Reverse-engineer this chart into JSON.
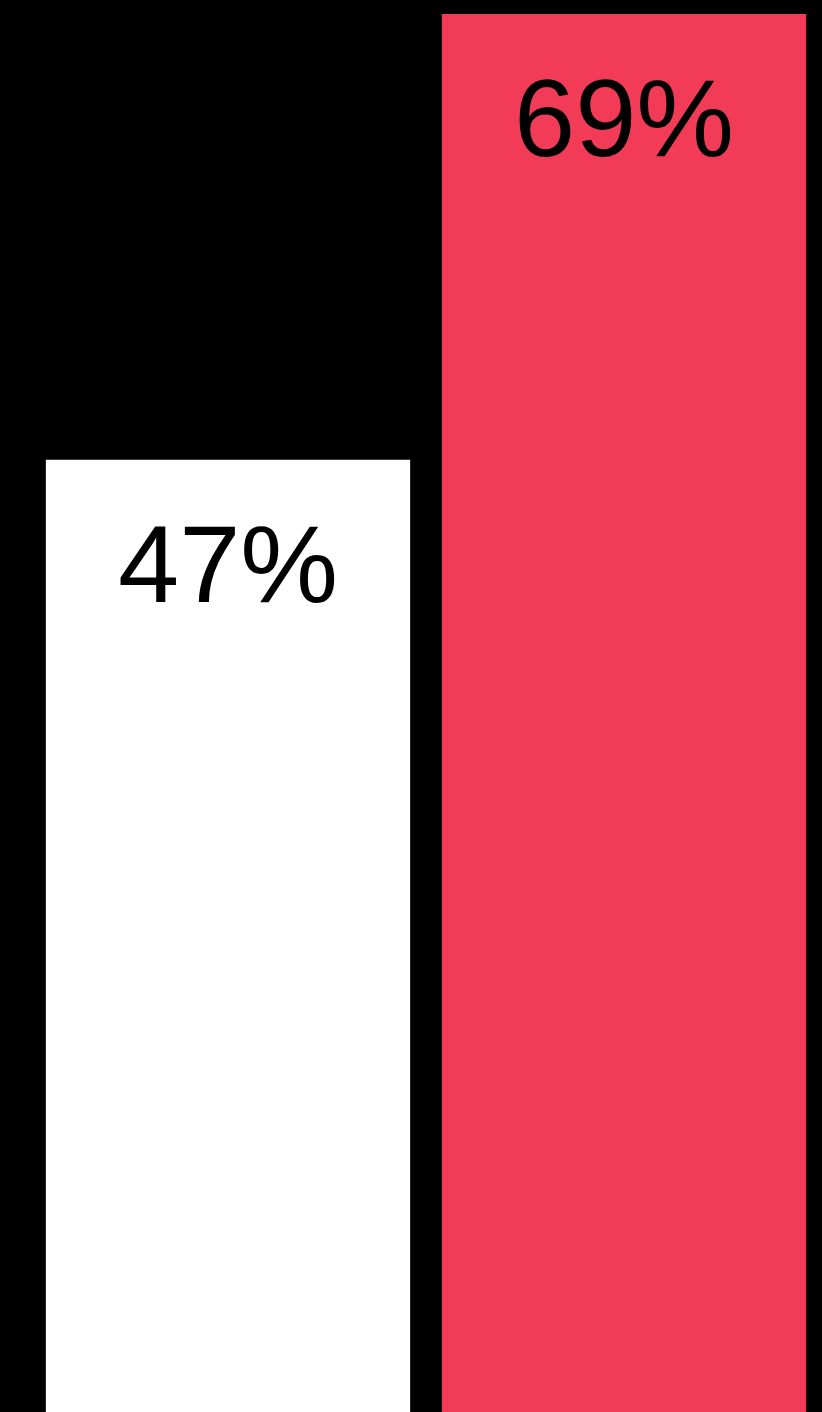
{
  "chart_data": {
    "type": "bar",
    "categories": [
      null,
      null
    ],
    "values": [
      47,
      69
    ],
    "colors": [
      "#ffffff",
      "#f23b57"
    ],
    "value_labels": [
      "47%",
      "69%"
    ]
  }
}
